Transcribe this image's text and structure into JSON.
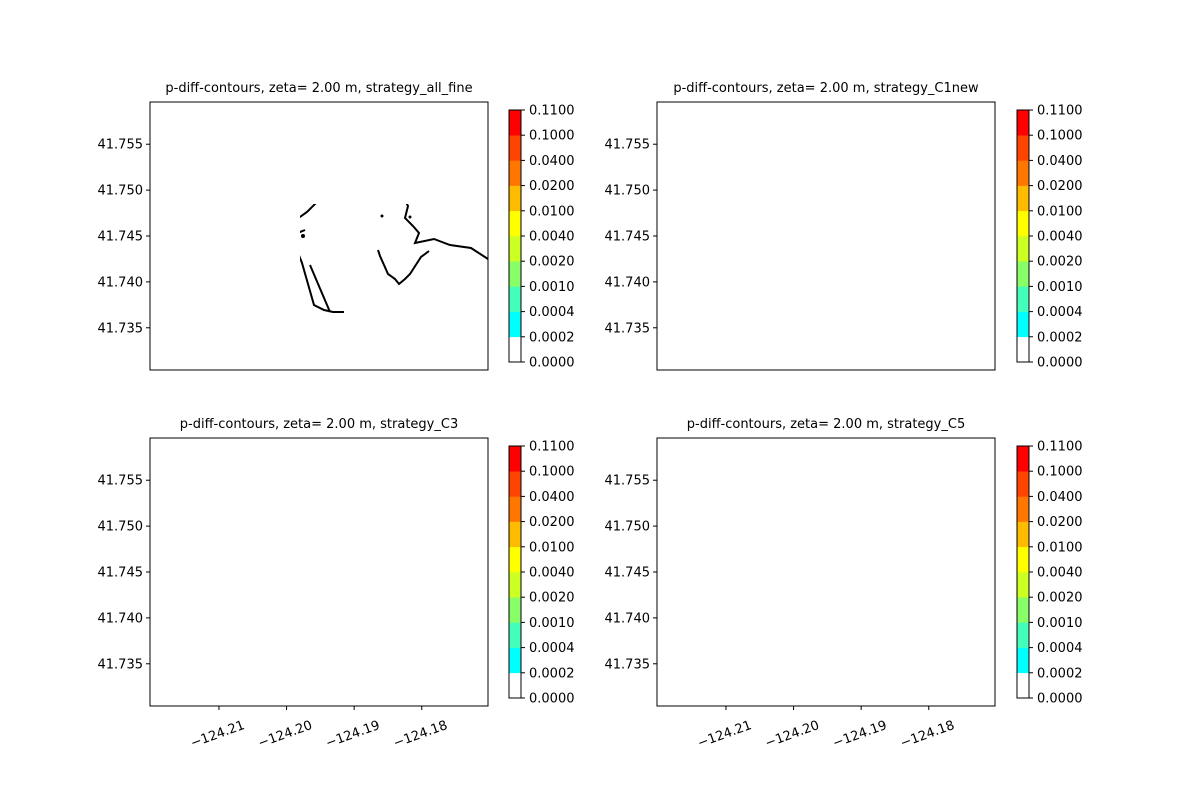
{
  "chart_data": [
    {
      "type": "heatmap",
      "title": "p-diff-contours, zeta= 2.00 m, strategy_all_fine",
      "y_ticks": [
        "41.755",
        "41.750",
        "41.745",
        "41.740",
        "41.735"
      ],
      "y_tick_values": [
        41.755,
        41.75,
        41.745,
        41.74,
        41.735
      ],
      "x_ticks": [],
      "xlim": [
        -124.2202,
        -124.1702
      ],
      "ylim": [
        41.7304,
        41.7596
      ],
      "levels": [
        0.0,
        0.0002,
        0.0004,
        0.001,
        0.002,
        0.004,
        0.01,
        0.02,
        0.04,
        0.1,
        0.11
      ],
      "fill_description": "no shading (all values in lowest band 0.0000-0.0002)",
      "field_pattern": "none"
    },
    {
      "type": "heatmap",
      "title": "p-diff-contours, zeta= 2.00 m, strategy_C1new",
      "y_ticks": [
        "41.755",
        "41.750",
        "41.745",
        "41.740",
        "41.735"
      ],
      "y_tick_values": [
        41.755,
        41.75,
        41.745,
        41.74,
        41.735
      ],
      "x_ticks": [],
      "xlim": [
        -124.2202,
        -124.1702
      ],
      "ylim": [
        41.7304,
        41.7596
      ],
      "levels": [
        0.0,
        0.0002,
        0.0004,
        0.001,
        0.002,
        0.004,
        0.01,
        0.02,
        0.04,
        0.1,
        0.11
      ],
      "field_pattern": "c1"
    },
    {
      "type": "heatmap",
      "title": "p-diff-contours, zeta= 2.00 m, strategy_C3",
      "y_ticks": [
        "41.755",
        "41.750",
        "41.745",
        "41.740",
        "41.735"
      ],
      "y_tick_values": [
        41.755,
        41.75,
        41.745,
        41.74,
        41.735
      ],
      "x_ticks": [
        "−124.21",
        "−124.20",
        "−124.19",
        "−124.18"
      ],
      "x_tick_values": [
        -124.21,
        -124.2,
        -124.19,
        -124.18
      ],
      "xlim": [
        -124.2202,
        -124.1702
      ],
      "ylim": [
        41.7304,
        41.7596
      ],
      "levels": [
        0.0,
        0.0002,
        0.0004,
        0.001,
        0.002,
        0.004,
        0.01,
        0.02,
        0.04,
        0.1,
        0.11
      ],
      "field_pattern": "c3"
    },
    {
      "type": "heatmap",
      "title": "p-diff-contours, zeta= 2.00 m, strategy_C5",
      "y_ticks": [
        "41.755",
        "41.750",
        "41.745",
        "41.740",
        "41.735"
      ],
      "y_tick_values": [
        41.755,
        41.75,
        41.745,
        41.74,
        41.735
      ],
      "x_ticks": [
        "−124.21",
        "−124.20",
        "−124.19",
        "−124.18"
      ],
      "x_tick_values": [
        -124.21,
        -124.2,
        -124.19,
        -124.18
      ],
      "xlim": [
        -124.2202,
        -124.1702
      ],
      "ylim": [
        41.7304,
        41.7596
      ],
      "levels": [
        0.0,
        0.0002,
        0.0004,
        0.001,
        0.002,
        0.004,
        0.01,
        0.02,
        0.04,
        0.1,
        0.11
      ],
      "field_pattern": "c5"
    }
  ],
  "colorbar": {
    "labels": [
      "0.0000",
      "0.0002",
      "0.0004",
      "0.0010",
      "0.0020",
      "0.0040",
      "0.0100",
      "0.0200",
      "0.0400",
      "0.1000",
      "0.1100"
    ],
    "colors": [
      "#ffffff",
      "#00ffff",
      "#44ffbb",
      "#88ff66",
      "#ccff22",
      "#ffff00",
      "#ffbb00",
      "#ff7700",
      "#ff4400",
      "#ff0000"
    ]
  }
}
